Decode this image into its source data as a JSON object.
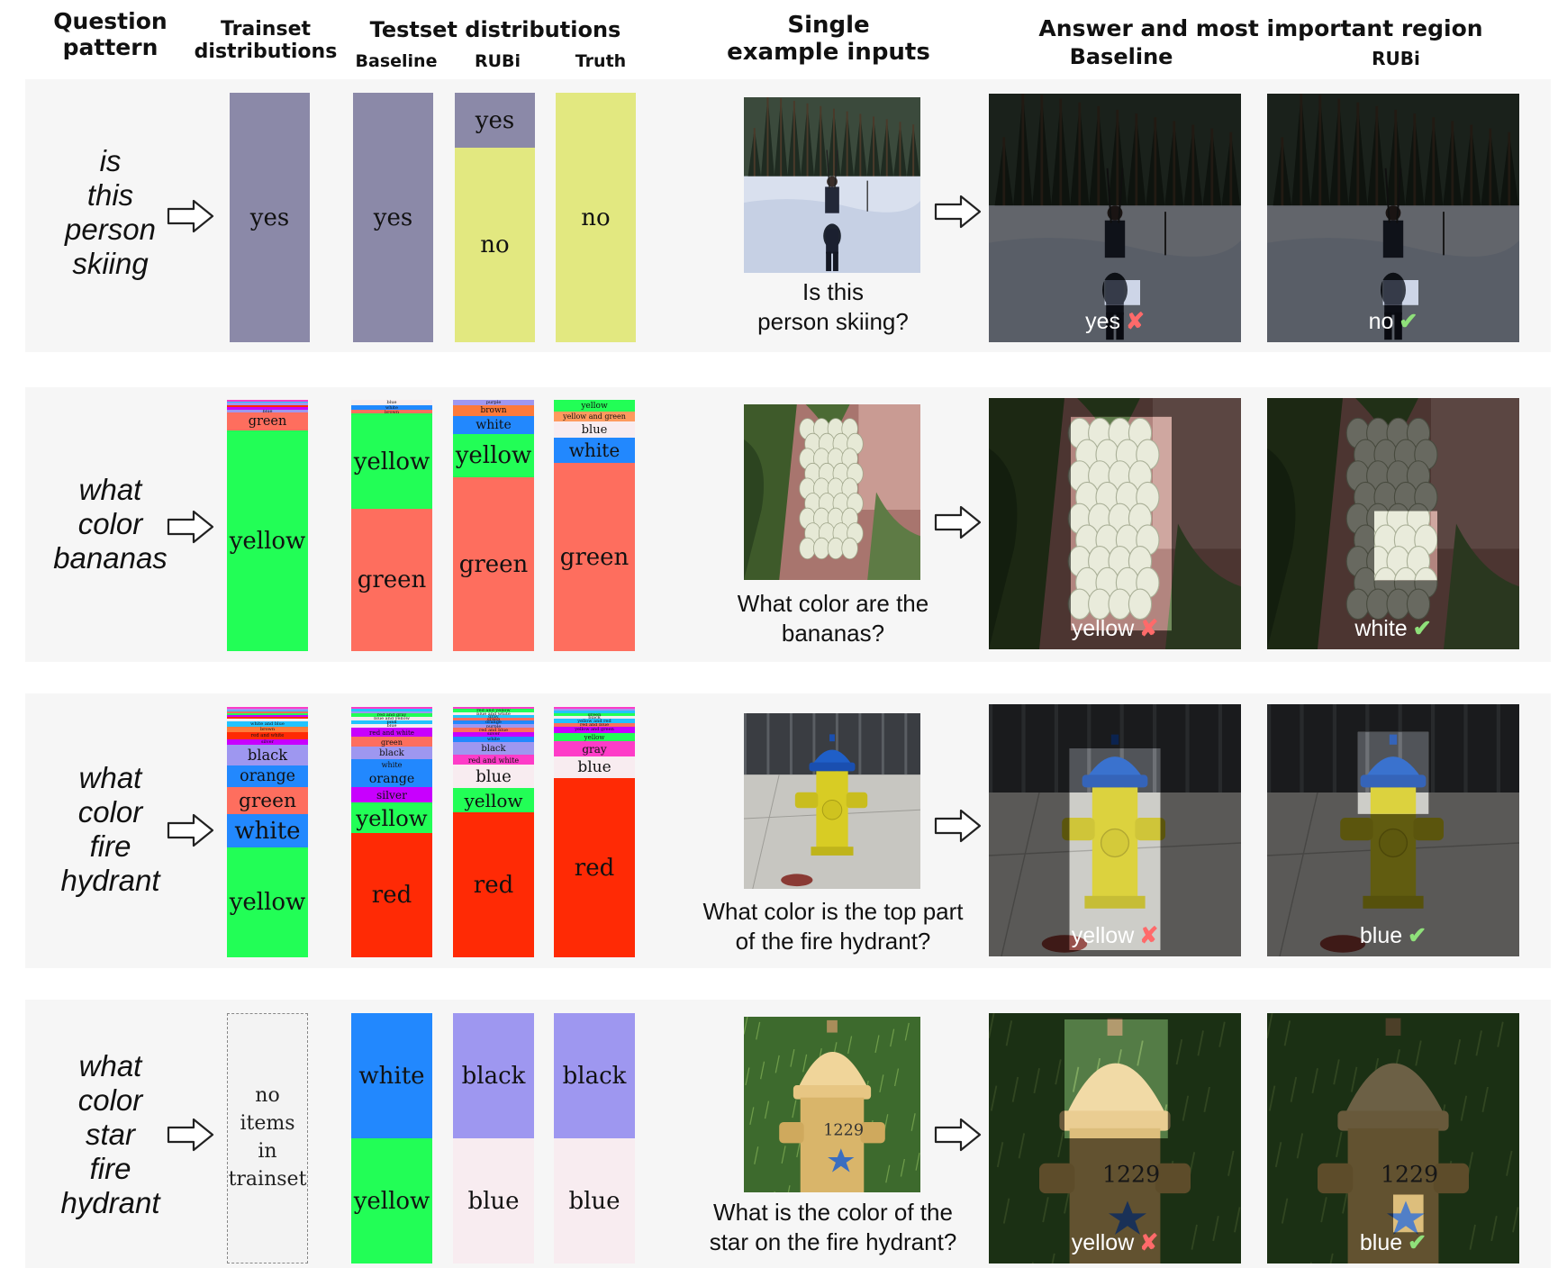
{
  "headers": {
    "question_pattern": [
      "Question",
      "pattern"
    ],
    "trainset": [
      "Trainset",
      "distributions"
    ],
    "testset": "Testset distributions",
    "test_cols": [
      "Baseline",
      "RUBi",
      "Truth"
    ],
    "single": [
      "Single",
      "example inputs"
    ],
    "answer": "Answer and most important region",
    "answer_cols": [
      "Baseline",
      "RUBi"
    ]
  },
  "colors": {
    "yes": "#8b89a8",
    "no": "#e2e880",
    "green": "#fe6e5e",
    "yellow": "#22fe56",
    "white": "#2288fe",
    "blue_label": "#f8ecf0",
    "red": "#ff2a05",
    "black": "#9e97f0",
    "wrong": "#ff6a6a",
    "right": "#8fe07a",
    "row_bg": "#f6f6f6"
  },
  "rows": [
    {
      "pattern": [
        "is",
        "this",
        "person",
        "skiing"
      ],
      "question": [
        "Is this",
        "person skiing?"
      ],
      "scene": "ski",
      "trainset": [
        {
          "label": "yes",
          "value": 1.0,
          "color": "#8b89a8"
        }
      ],
      "baseline": [
        {
          "label": "yes",
          "value": 1.0,
          "color": "#8b89a8"
        }
      ],
      "rubi": [
        {
          "label": "yes",
          "value": 0.22,
          "color": "#8b89a8"
        },
        {
          "label": "no",
          "value": 0.78,
          "color": "#e2e880"
        }
      ],
      "truth": [
        {
          "label": "no",
          "value": 1.0,
          "color": "#e2e880"
        }
      ],
      "answer_baseline": {
        "text": "yes",
        "mark": "✘",
        "correct": false
      },
      "answer_rubi": {
        "text": "no",
        "mark": "✔",
        "correct": true
      }
    },
    {
      "pattern": [
        "what",
        "color",
        "bananas"
      ],
      "question": [
        "What color are the",
        "bananas?"
      ],
      "scene": "banana",
      "trainset": [
        {
          "label": "",
          "value": 0.006,
          "color": "#fe3cc8"
        },
        {
          "label": "",
          "value": 0.006,
          "color": "#22c3fe"
        },
        {
          "label": "",
          "value": 0.008,
          "color": "#9e97f0"
        },
        {
          "label": "",
          "value": 0.008,
          "color": "#ff2a05"
        },
        {
          "label": "",
          "value": 0.01,
          "color": "#c800fe"
        },
        {
          "label": "blue",
          "value": 0.012,
          "color": "#9e97f0"
        },
        {
          "label": "green",
          "value": 0.072,
          "color": "#fe6e5e"
        },
        {
          "label": "yellow",
          "value": 0.878,
          "color": "#22fe56"
        }
      ],
      "baseline": [
        {
          "label": "blue",
          "value": 0.02,
          "color": "#f8ecf0"
        },
        {
          "label": "white",
          "value": 0.02,
          "color": "#2288fe"
        },
        {
          "label": "brown",
          "value": 0.015,
          "color": "#fe6e5e"
        },
        {
          "label": "yellow",
          "value": 0.38,
          "color": "#22fe56"
        },
        {
          "label": "green",
          "value": 0.565,
          "color": "#fe6e5e"
        }
      ],
      "rubi": [
        {
          "label": "purple",
          "value": 0.02,
          "color": "#9e97f0"
        },
        {
          "label": "brown",
          "value": 0.045,
          "color": "#fe7a3a"
        },
        {
          "label": "white",
          "value": 0.07,
          "color": "#2288fe"
        },
        {
          "label": "yellow",
          "value": 0.175,
          "color": "#22fe56"
        },
        {
          "label": "green",
          "value": 0.69,
          "color": "#fe6e5e"
        }
      ],
      "truth": [
        {
          "label": "yellow",
          "value": 0.045,
          "color": "#22fe56"
        },
        {
          "label": "yellow and green",
          "value": 0.04,
          "color": "#fe9a5e"
        },
        {
          "label": "blue",
          "value": 0.065,
          "color": "#f8ecf0"
        },
        {
          "label": "white",
          "value": 0.1,
          "color": "#2288fe"
        },
        {
          "label": "green",
          "value": 0.75,
          "color": "#fe6e5e"
        }
      ],
      "answer_baseline": {
        "text": "yellow",
        "mark": "✘",
        "correct": false
      },
      "answer_rubi": {
        "text": "white",
        "mark": "✔",
        "correct": true
      }
    },
    {
      "pattern": [
        "what",
        "color",
        "fire",
        "hydrant"
      ],
      "question": [
        "What color is the top part",
        "of the fire hydrant?"
      ],
      "scene": "hydrant1",
      "trainset": [
        {
          "label": "",
          "value": 0.006,
          "color": "#fe3cc8"
        },
        {
          "label": "",
          "value": 0.006,
          "color": "#9e97f0"
        },
        {
          "label": "",
          "value": 0.006,
          "color": "#22c3fe"
        },
        {
          "label": "",
          "value": 0.006,
          "color": "#fe6e5e"
        },
        {
          "label": "",
          "value": 0.006,
          "color": "#22fe56"
        },
        {
          "label": "",
          "value": 0.006,
          "color": "#c800fe"
        },
        {
          "label": "",
          "value": 0.008,
          "color": "#ff2a05"
        },
        {
          "label": "",
          "value": 0.01,
          "color": "#f8ecf0"
        },
        {
          "label": "white and blue",
          "value": 0.018,
          "color": "#22c3fe"
        },
        {
          "label": "brown",
          "value": 0.022,
          "color": "#fe7a3a"
        },
        {
          "label": "red and white",
          "value": 0.024,
          "color": "#ff2a05"
        },
        {
          "label": "silver",
          "value": 0.022,
          "color": "#c800fe"
        },
        {
          "label": "black",
          "value": 0.075,
          "color": "#9e97f0"
        },
        {
          "label": "orange",
          "value": 0.08,
          "color": "#2288fe"
        },
        {
          "label": "green",
          "value": 0.1,
          "color": "#fe6e5e"
        },
        {
          "label": "white",
          "value": 0.12,
          "color": "#2288fe"
        },
        {
          "label": "yellow",
          "value": 0.405,
          "color": "#22fe56"
        }
      ],
      "baseline": [
        {
          "label": "",
          "value": 0.008,
          "color": "#fe3cc8"
        },
        {
          "label": "",
          "value": 0.008,
          "color": "#22c3fe"
        },
        {
          "label": "",
          "value": 0.008,
          "color": "#9e97f0"
        },
        {
          "label": "red and gray",
          "value": 0.015,
          "color": "#22fe56"
        },
        {
          "label": "blue and yellow",
          "value": 0.015,
          "color": "#f8ecf0"
        },
        {
          "label": "pink",
          "value": 0.012,
          "color": "#22c3fe"
        },
        {
          "label": "blue",
          "value": 0.015,
          "color": "#f8ecf0"
        },
        {
          "label": "red and white",
          "value": 0.035,
          "color": "#c800fe"
        },
        {
          "label": "green",
          "value": 0.04,
          "color": "#fe6e5e"
        },
        {
          "label": "black",
          "value": 0.05,
          "color": "#9e97f0"
        },
        {
          "label": "white",
          "value": 0.04,
          "color": "#2288fe"
        },
        {
          "label": "orange",
          "value": 0.07,
          "color": "#2288fe"
        },
        {
          "label": "silver",
          "value": 0.06,
          "color": "#c800fe"
        },
        {
          "label": "yellow",
          "value": 0.12,
          "color": "#22fe56"
        },
        {
          "label": "red",
          "value": 0.488,
          "color": "#ff2a05"
        }
      ],
      "rubi": [
        {
          "label": "",
          "value": 0.008,
          "color": "#fe3cc8"
        },
        {
          "label": "red and yellow",
          "value": 0.012,
          "color": "#22fe56"
        },
        {
          "label": "blue and white",
          "value": 0.012,
          "color": "#f8ecf0"
        },
        {
          "label": "gray",
          "value": 0.01,
          "color": "#22c3fe"
        },
        {
          "label": "green",
          "value": 0.012,
          "color": "#fe6e5e"
        },
        {
          "label": "orange",
          "value": 0.015,
          "color": "#2288fe"
        },
        {
          "label": "purple",
          "value": 0.015,
          "color": "#9e97f0"
        },
        {
          "label": "red and blue",
          "value": 0.015,
          "color": "#fe6e5e"
        },
        {
          "label": "silver",
          "value": 0.018,
          "color": "#c800fe"
        },
        {
          "label": "white",
          "value": 0.025,
          "color": "#2288fe"
        },
        {
          "label": "black",
          "value": 0.05,
          "color": "#9e97f0"
        },
        {
          "label": "red and white",
          "value": 0.04,
          "color": "#fe3cc8"
        },
        {
          "label": "blue",
          "value": 0.09,
          "color": "#f8ecf0"
        },
        {
          "label": "yellow",
          "value": 0.1,
          "color": "#22fe56"
        },
        {
          "label": "red",
          "value": 0.578,
          "color": "#ff2a05"
        }
      ],
      "truth": [
        {
          "label": "",
          "value": 0.008,
          "color": "#fe3cc8"
        },
        {
          "label": "",
          "value": 0.008,
          "color": "#9e97f0"
        },
        {
          "label": "",
          "value": 0.008,
          "color": "#22c3fe"
        },
        {
          "label": "green",
          "value": 0.012,
          "color": "#22fe56"
        },
        {
          "label": "black",
          "value": 0.012,
          "color": "#f8ecf0"
        },
        {
          "label": "yellow and red",
          "value": 0.015,
          "color": "#22c3fe"
        },
        {
          "label": "red and blue",
          "value": 0.015,
          "color": "#fe6e5e"
        },
        {
          "label": "yellow and green",
          "value": 0.025,
          "color": "#c800fe"
        },
        {
          "label": "yellow",
          "value": 0.035,
          "color": "#22fe56"
        },
        {
          "label": "gray",
          "value": 0.06,
          "color": "#fe3cc8"
        },
        {
          "label": "blue",
          "value": 0.085,
          "color": "#f8ecf0"
        },
        {
          "label": "red",
          "value": 0.717,
          "color": "#ff2a05"
        }
      ],
      "answer_baseline": {
        "text": "yellow",
        "mark": "✘",
        "correct": false
      },
      "answer_rubi": {
        "text": "blue",
        "mark": "✔",
        "correct": true
      }
    },
    {
      "pattern": [
        "what",
        "color",
        "star",
        "fire",
        "hydrant"
      ],
      "question": [
        "What is the color of the",
        "star on the fire hydrant?"
      ],
      "scene": "hydrant2",
      "trainset_empty": [
        "no",
        "items",
        "in",
        "trainset"
      ],
      "trainset": [],
      "baseline": [
        {
          "label": "white",
          "value": 0.5,
          "color": "#2288fe"
        },
        {
          "label": "yellow",
          "value": 0.5,
          "color": "#22fe56"
        }
      ],
      "rubi": [
        {
          "label": "black",
          "value": 0.5,
          "color": "#9e97f0"
        },
        {
          "label": "blue",
          "value": 0.5,
          "color": "#f8ecf0"
        }
      ],
      "truth": [
        {
          "label": "black",
          "value": 0.5,
          "color": "#9e97f0"
        },
        {
          "label": "blue",
          "value": 0.5,
          "color": "#f8ecf0"
        }
      ],
      "answer_baseline": {
        "text": "yellow",
        "mark": "✘",
        "correct": false
      },
      "answer_rubi": {
        "text": "blue",
        "mark": "✔",
        "correct": true
      }
    }
  ]
}
